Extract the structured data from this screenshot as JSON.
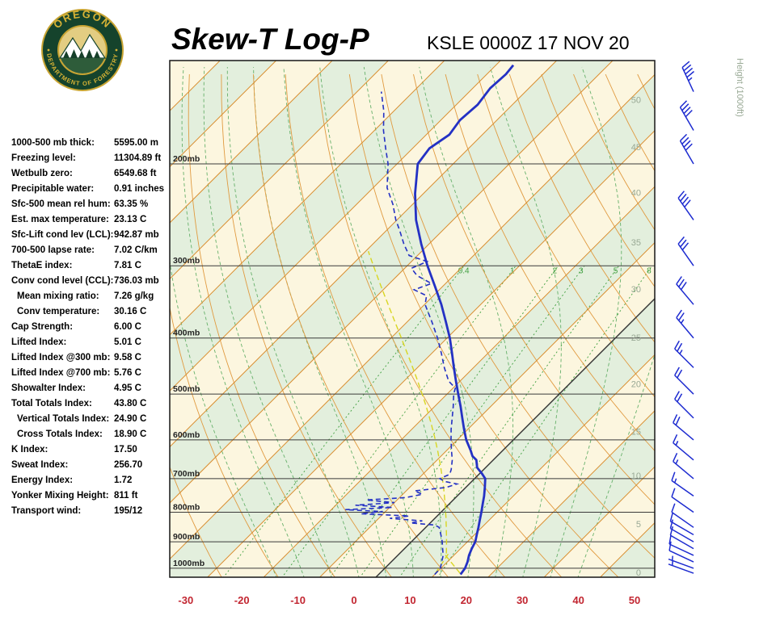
{
  "header": {
    "title": "Skew-T Log-P",
    "station": "KSLE 0000Z 17 NOV 20",
    "logo": {
      "top": "OREGON",
      "bottom": "DEPARTMENT OF FORESTRY"
    }
  },
  "stats": {
    "rows": [
      {
        "label": "1000-500 mb thick:",
        "value": "5595.00 m",
        "indent": false
      },
      {
        "label": "Freezing level:",
        "value": "11304.89 ft",
        "indent": false
      },
      {
        "label": "Wetbulb zero:",
        "value": "6549.68 ft",
        "indent": false
      },
      {
        "label": "Precipitable water:",
        "value": "0.91 inches",
        "indent": false
      },
      {
        "label": "Sfc-500 mean rel hum:",
        "value": "63.35 %",
        "indent": false
      },
      {
        "label": "Est. max temperature:",
        "value": "23.13 C",
        "indent": false
      },
      {
        "label": "Sfc-Lift cond lev (LCL):",
        "value": "942.87 mb",
        "indent": false
      },
      {
        "label": "700-500 lapse rate:",
        "value": "7.02 C/km",
        "indent": false
      },
      {
        "label": "ThetaE index:",
        "value": "7.81 C",
        "indent": false
      },
      {
        "label": "Conv cond level (CCL):",
        "value": "736.03 mb",
        "indent": false
      },
      {
        "label": "Mean mixing ratio:",
        "value": "7.26 g/kg",
        "indent": true
      },
      {
        "label": "Conv temperature:",
        "value": "30.16 C",
        "indent": true
      },
      {
        "label": "Cap Strength:",
        "value": "6.00 C",
        "indent": false
      },
      {
        "label": "Lifted Index:",
        "value": "5.01 C",
        "indent": false
      },
      {
        "label": "Lifted Index @300 mb:",
        "value": "9.58 C",
        "indent": false
      },
      {
        "label": "Lifted Index @700 mb:",
        "value": "5.76 C",
        "indent": false
      },
      {
        "label": "Showalter Index:",
        "value": "4.95 C",
        "indent": false
      },
      {
        "label": "Total Totals Index:",
        "value": "43.80 C",
        "indent": false
      },
      {
        "label": "Vertical Totals Index:",
        "value": "24.90 C",
        "indent": true
      },
      {
        "label": "Cross Totals Index:",
        "value": "18.90 C",
        "indent": true
      },
      {
        "label": "K Index:",
        "value": "17.50",
        "indent": false
      },
      {
        "label": "Sweat Index:",
        "value": "256.70",
        "indent": false
      },
      {
        "label": "Energy Index:",
        "value": "1.72",
        "indent": false
      },
      {
        "label": "Yonker Mixing Height:",
        "value": "811 ft",
        "indent": false
      },
      {
        "label": "Transport wind:",
        "value": "195/12",
        "indent": false
      }
    ]
  },
  "chart_data": {
    "type": "skew-t-log-p-sounding",
    "station": "KSLE",
    "valid_time": "0000Z 17 NOV 20",
    "x_axis": {
      "unit": "C",
      "ticks": [
        -30,
        -20,
        -10,
        0,
        10,
        20,
        30,
        40,
        50
      ],
      "color": "#c22631"
    },
    "pressure_axis": {
      "ticks_mb": [
        200,
        300,
        400,
        500,
        600,
        700,
        800,
        900,
        1000
      ],
      "label_suffix": "mb",
      "color": "#222222"
    },
    "height_axis": {
      "title": "Height (1000ft)",
      "ticks": [
        0,
        5,
        10,
        15,
        20,
        25,
        30,
        35,
        40,
        45,
        50
      ],
      "tick_pressures_mb": [
        1017,
        838,
        691,
        580,
        480,
        399,
        329,
        273,
        224,
        187,
        155
      ],
      "color": "#98a894"
    },
    "isotherms": {
      "min_c": -130,
      "max_c": 50,
      "step_c": 10,
      "color": "#d98d2e",
      "zero_line_color": "#333333"
    },
    "dry_adiabats": {
      "theta_min_c": -40,
      "theta_max_c": 170,
      "step_c": 10,
      "color": "#e09a40"
    },
    "moist_adiabats": {
      "surface_temps_c": [
        -20,
        -15,
        -10,
        -5,
        0,
        5,
        10,
        15,
        20,
        25,
        30,
        35
      ],
      "color": "#66b06a"
    },
    "mixing_ratio_lines": {
      "values_gkg": [
        0.4,
        1,
        2,
        3,
        5,
        8
      ],
      "label_pressure_mb": 312,
      "color": "#3f9f3f"
    },
    "background_bands": {
      "even_color": "#e3efdd",
      "odd_color": "#fcf6df"
    },
    "sounding": {
      "color": "#2431c4",
      "temperature_c": [
        [
          1025,
          14.6
        ],
        [
          1000,
          14.3
        ],
        [
          975,
          13.6
        ],
        [
          950,
          12.7
        ],
        [
          925,
          12.0
        ],
        [
          900,
          11.4
        ],
        [
          875,
          10.4
        ],
        [
          850,
          9.4
        ],
        [
          825,
          8.3
        ],
        [
          800,
          7.2
        ],
        [
          775,
          6.0
        ],
        [
          750,
          4.8
        ],
        [
          725,
          3.4
        ],
        [
          705,
          2.2
        ],
        [
          700,
          1.9
        ],
        [
          685,
          0.3
        ],
        [
          670,
          -1.5
        ],
        [
          650,
          -3.0
        ],
        [
          640,
          -4.4
        ],
        [
          625,
          -5.8
        ],
        [
          600,
          -8.4
        ],
        [
          575,
          -10.7
        ],
        [
          550,
          -13.0
        ],
        [
          525,
          -15.4
        ],
        [
          500,
          -18.0
        ],
        [
          475,
          -20.7
        ],
        [
          450,
          -23.5
        ],
        [
          425,
          -26.4
        ],
        [
          400,
          -29.5
        ],
        [
          375,
          -33.1
        ],
        [
          350,
          -37.0
        ],
        [
          325,
          -41.5
        ],
        [
          300,
          -46.4
        ],
        [
          275,
          -51.4
        ],
        [
          250,
          -56.6
        ],
        [
          225,
          -61.5
        ],
        [
          200,
          -66.3
        ],
        [
          188,
          -67.0
        ],
        [
          178,
          -65.9
        ],
        [
          168,
          -66.6
        ],
        [
          158,
          -66.2
        ],
        [
          148,
          -66.9
        ],
        [
          140,
          -66.6
        ],
        [
          135,
          -66.9
        ]
      ],
      "dewpoint_c": [
        [
          1025,
          10.0
        ],
        [
          1000,
          9.9
        ],
        [
          975,
          9.0
        ],
        [
          950,
          8.1
        ],
        [
          925,
          6.8
        ],
        [
          900,
          5.5
        ],
        [
          875,
          4.0
        ],
        [
          850,
          2.4
        ],
        [
          842,
          1.2
        ],
        [
          835,
          -3.5
        ],
        [
          828,
          -1.8
        ],
        [
          820,
          -8.0
        ],
        [
          812,
          -5.0
        ],
        [
          805,
          -14.0
        ],
        [
          798,
          -10.5
        ],
        [
          792,
          -17.5
        ],
        [
          785,
          -9.5
        ],
        [
          778,
          -16.5
        ],
        [
          770,
          -10.0
        ],
        [
          762,
          -15.5
        ],
        [
          755,
          -8.9
        ],
        [
          745,
          -6.5
        ],
        [
          735,
          -8.5
        ],
        [
          725,
          -3.5
        ],
        [
          715,
          -2.2
        ],
        [
          708,
          -4.8
        ],
        [
          700,
          -6.2
        ],
        [
          688,
          -5.2
        ],
        [
          675,
          -5.8
        ],
        [
          650,
          -7.3
        ],
        [
          625,
          -9.2
        ],
        [
          600,
          -11.1
        ],
        [
          575,
          -13.0
        ],
        [
          550,
          -14.8
        ],
        [
          525,
          -16.7
        ],
        [
          500,
          -18.8
        ],
        [
          488,
          -19.6
        ],
        [
          475,
          -22.0
        ],
        [
          450,
          -25.2
        ],
        [
          425,
          -28.3
        ],
        [
          400,
          -31.7
        ],
        [
          375,
          -35.6
        ],
        [
          350,
          -39.9
        ],
        [
          338,
          -41.2
        ],
        [
          330,
          -44.5
        ],
        [
          322,
          -42.5
        ],
        [
          312,
          -46.5
        ],
        [
          303,
          -48.8
        ],
        [
          295,
          -47.2
        ],
        [
          288,
          -51.5
        ],
        [
          275,
          -54.5
        ],
        [
          260,
          -57.8
        ],
        [
          250,
          -60.2
        ],
        [
          235,
          -63.5
        ],
        [
          220,
          -67.5
        ],
        [
          200,
          -71.6
        ],
        [
          188,
          -74.8
        ],
        [
          175,
          -78.4
        ],
        [
          162,
          -81.8
        ],
        [
          150,
          -85.7
        ]
      ]
    },
    "parcel": {
      "surface_p_mb": 1020,
      "surface_t_c": 14.3,
      "surface_td_c": 9.9,
      "lcl_p_mb": 943,
      "top_p_mb": 288,
      "color": "#d8d622"
    },
    "winds": {
      "color": "#1d2bd0",
      "barbs": [
        {
          "p": 1020,
          "dir": 290,
          "spd": 5
        },
        {
          "p": 1000,
          "dir": 290,
          "spd": 5
        },
        {
          "p": 975,
          "dir": 295,
          "spd": 8
        },
        {
          "p": 950,
          "dir": 295,
          "spd": 8
        },
        {
          "p": 925,
          "dir": 300,
          "spd": 10
        },
        {
          "p": 900,
          "dir": 300,
          "spd": 10
        },
        {
          "p": 875,
          "dir": 300,
          "spd": 10
        },
        {
          "p": 850,
          "dir": 305,
          "spd": 12
        },
        {
          "p": 800,
          "dir": 305,
          "spd": 12
        },
        {
          "p": 750,
          "dir": 305,
          "spd": 15
        },
        {
          "p": 700,
          "dir": 310,
          "spd": 15
        },
        {
          "p": 650,
          "dir": 310,
          "spd": 15
        },
        {
          "p": 600,
          "dir": 310,
          "spd": 18
        },
        {
          "p": 550,
          "dir": 315,
          "spd": 20
        },
        {
          "p": 500,
          "dir": 315,
          "spd": 20
        },
        {
          "p": 450,
          "dir": 315,
          "spd": 25
        },
        {
          "p": 400,
          "dir": 320,
          "spd": 25
        },
        {
          "p": 350,
          "dir": 320,
          "spd": 28
        },
        {
          "p": 300,
          "dir": 325,
          "spd": 32
        },
        {
          "p": 250,
          "dir": 325,
          "spd": 38
        },
        {
          "p": 200,
          "dir": 330,
          "spd": 42
        },
        {
          "p": 175,
          "dir": 330,
          "spd": 40
        },
        {
          "p": 150,
          "dir": 335,
          "spd": 45
        }
      ]
    },
    "frame_color": "#161616",
    "pressure_line_color": "#3a3a3a"
  }
}
